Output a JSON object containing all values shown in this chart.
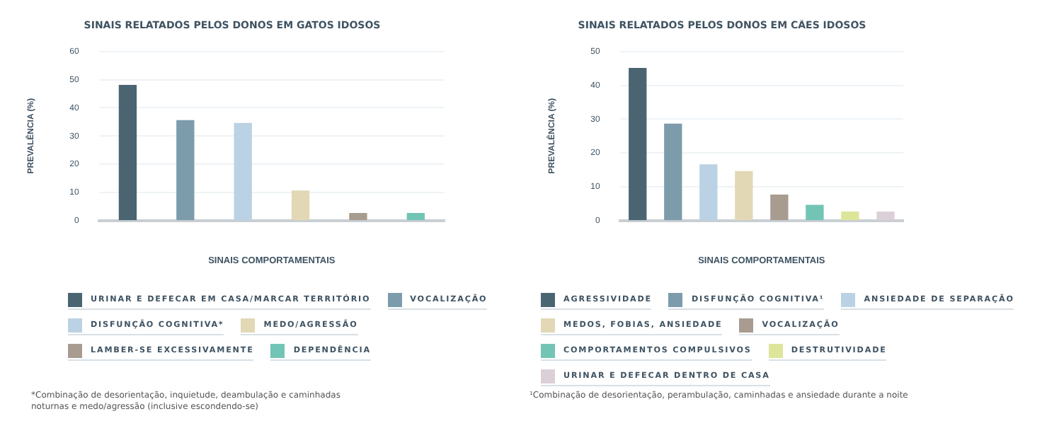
{
  "chart_data": [
    {
      "type": "bar",
      "title": "SINAIS RELATADOS PELOS DONOS EM GATOS IDOSOS",
      "xlabel": "SINAIS COMPORTAMENTAIS",
      "ylabel": "PREVALÊNCIA (%)",
      "categories": [
        null,
        null,
        null,
        null,
        null,
        null
      ],
      "series": [
        {
          "name": "URINAR E DEFECAR EM CASA/MARCAR TERRITÓRIO",
          "color": "#4a6472",
          "values": [
            48,
            null,
            null,
            null,
            null,
            null
          ]
        },
        {
          "name": "VOCALIZAÇÃO",
          "color": "#7c9cac",
          "values": [
            null,
            35.5,
            null,
            null,
            null,
            null
          ]
        },
        {
          "name": "DISFUNÇÃO COGNITIVA*",
          "color": "#bad2e3",
          "values": [
            null,
            null,
            34.5,
            null,
            null,
            null
          ]
        },
        {
          "name": "MEDO/AGRESSÃO",
          "color": "#e2d8b6",
          "values": [
            null,
            null,
            null,
            10.5,
            null,
            null
          ]
        },
        {
          "name": "LAMBER-SE EXCESSIVAMENTE",
          "color": "#a89c90",
          "values": [
            null,
            null,
            null,
            null,
            2.5,
            null
          ]
        },
        {
          "name": "DEPENDÊNCIA",
          "color": "#72c4b4",
          "values": [
            null,
            null,
            null,
            null,
            null,
            2.5
          ]
        }
      ],
      "ylim": [
        0,
        60
      ],
      "yticks": [
        0,
        10,
        20,
        30,
        40,
        50,
        60
      ],
      "grid": "y",
      "legend": "bottom",
      "annotations": [
        "*Combinação de desorientação, inquietude, deambulação e caminhadas noturnas e medo/agressão (inclusive escondendo-se)"
      ]
    },
    {
      "type": "bar",
      "title": "SINAIS RELATADOS PELOS DONOS EM CÃES IDOSOS",
      "xlabel": "SINAIS COMPORTAMENTAIS",
      "ylabel": "PREVALÊNCIA (%)",
      "categories": [
        null,
        null,
        null,
        null,
        null,
        null,
        null,
        null
      ],
      "series": [
        {
          "name": "AGRESSIVIDADE",
          "color": "#4a6472",
          "values": [
            45,
            null,
            null,
            null,
            null,
            null,
            null,
            null
          ]
        },
        {
          "name": "DISFUNÇÃO COGNITIVA¹",
          "color": "#7c9cac",
          "values": [
            null,
            28.5,
            null,
            null,
            null,
            null,
            null,
            null
          ]
        },
        {
          "name": "ANSIEDADE DE SEPARAÇÃO",
          "color": "#bad2e3",
          "values": [
            null,
            null,
            16.5,
            null,
            null,
            null,
            null,
            null
          ]
        },
        {
          "name": "MEDOS, FOBIAS, ANSIEDADE",
          "color": "#e2d8b6",
          "values": [
            null,
            null,
            null,
            14.5,
            null,
            null,
            null,
            null
          ]
        },
        {
          "name": "VOCALIZAÇÃO",
          "color": "#a89c90",
          "values": [
            null,
            null,
            null,
            null,
            7.5,
            null,
            null,
            null
          ]
        },
        {
          "name": "COMPORTAMENTOS COMPULSIVOS",
          "color": "#72c4b4",
          "values": [
            null,
            null,
            null,
            null,
            null,
            4.5,
            null,
            null
          ]
        },
        {
          "name": "DESTRUTIVIDADE",
          "color": "#dde59a",
          "values": [
            null,
            null,
            null,
            null,
            null,
            null,
            2.5,
            null
          ]
        },
        {
          "name": "URINAR E DEFECAR DENTRO DE CASA",
          "color": "#dcd0d8",
          "values": [
            null,
            null,
            null,
            null,
            null,
            null,
            null,
            2.5
          ]
        }
      ],
      "ylim": [
        0,
        50
      ],
      "yticks": [
        0,
        10,
        20,
        30,
        40,
        50
      ],
      "grid": "y",
      "legend": "bottom",
      "annotations": [
        "¹Combinação de desorientação, perambulação, caminhadas e ansiedade durante a noite"
      ]
    }
  ]
}
